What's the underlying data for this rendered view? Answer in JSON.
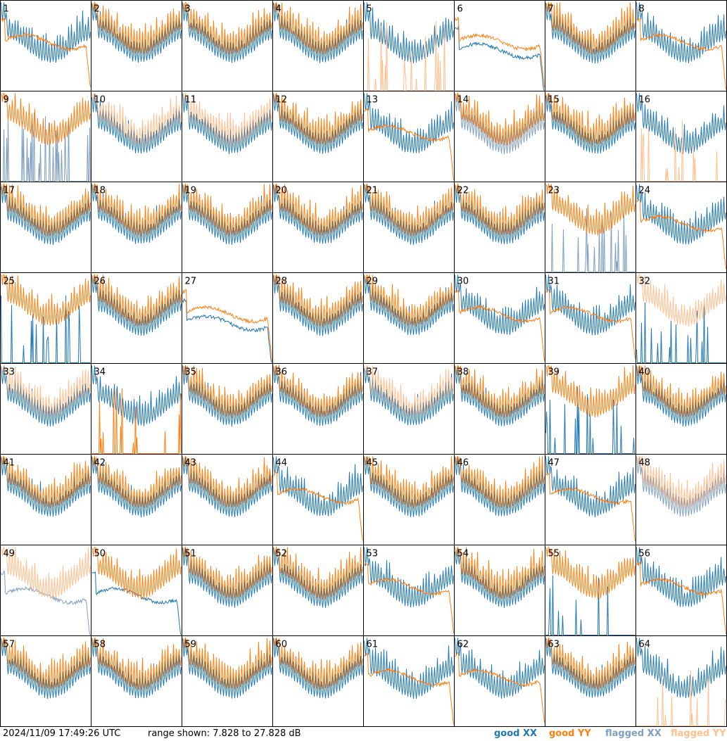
{
  "footer": {
    "timestamp": "2024/11/09 17:49:26 UTC",
    "range_text": "range shown: 7.828 to 27.828 dB"
  },
  "legend": [
    {
      "label": "good XX",
      "color": "#1f77b4"
    },
    {
      "label": "good YY",
      "color": "#ff7f0e"
    },
    {
      "label": "flagged XX",
      "color": "#7f9fbf"
    },
    {
      "label": "flagged YY",
      "color": "#ffbf8f"
    }
  ],
  "chart_data": {
    "type": "line",
    "grid_rows": 8,
    "grid_cols": 8,
    "ylim": [
      7.828,
      27.828
    ],
    "yunit": "dB",
    "colors": {
      "good_xx": "#1f77b4",
      "good_yy": "#ff7f0e",
      "flagged_xx": "#7f9fbf",
      "flagged_yy": "#ffbf8f"
    },
    "panels": [
      {
        "label": "1",
        "xx_status": "good",
        "yy_status": "good",
        "xx_shape": "ripple",
        "yy_shape": "flat"
      },
      {
        "label": "2",
        "xx_status": "good",
        "yy_status": "good",
        "xx_shape": "ripple",
        "yy_shape": "ripple"
      },
      {
        "label": "3",
        "xx_status": "good",
        "yy_status": "good",
        "xx_shape": "ripple",
        "yy_shape": "ripple"
      },
      {
        "label": "4",
        "xx_status": "good",
        "yy_status": "good",
        "xx_shape": "ripple",
        "yy_shape": "ripple"
      },
      {
        "label": "5",
        "xx_status": "good",
        "yy_status": "flagged",
        "xx_shape": "ripple",
        "yy_shape": "spikes"
      },
      {
        "label": "6",
        "xx_status": "good",
        "yy_status": "good",
        "xx_shape": "flat",
        "yy_shape": "flat"
      },
      {
        "label": "7",
        "xx_status": "good",
        "yy_status": "good",
        "xx_shape": "ripple",
        "yy_shape": "ripple"
      },
      {
        "label": "8",
        "xx_status": "good",
        "yy_status": "good",
        "xx_shape": "ripple",
        "yy_shape": "flat"
      },
      {
        "label": "9",
        "xx_status": "flagged",
        "yy_status": "good",
        "xx_shape": "spikes",
        "yy_shape": "ripple"
      },
      {
        "label": "10",
        "xx_status": "good",
        "yy_status": "flagged",
        "xx_shape": "ripple",
        "yy_shape": "ripple"
      },
      {
        "label": "11",
        "xx_status": "good",
        "yy_status": "flagged",
        "xx_shape": "ripple",
        "yy_shape": "ripple"
      },
      {
        "label": "12",
        "xx_status": "good",
        "yy_status": "good",
        "xx_shape": "ripple",
        "yy_shape": "ripple"
      },
      {
        "label": "13",
        "xx_status": "good",
        "yy_status": "good",
        "xx_shape": "ripple",
        "yy_shape": "flat"
      },
      {
        "label": "14",
        "xx_status": "flagged",
        "yy_status": "good",
        "xx_shape": "ripple",
        "yy_shape": "ripple"
      },
      {
        "label": "15",
        "xx_status": "good",
        "yy_status": "good",
        "xx_shape": "ripple",
        "yy_shape": "ripple"
      },
      {
        "label": "16",
        "xx_status": "good",
        "yy_status": "flagged",
        "xx_shape": "ripple",
        "yy_shape": "spikes"
      },
      {
        "label": "17",
        "xx_status": "good",
        "yy_status": "good",
        "xx_shape": "ripple",
        "yy_shape": "ripple"
      },
      {
        "label": "18",
        "xx_status": "good",
        "yy_status": "good",
        "xx_shape": "ripple",
        "yy_shape": "ripple"
      },
      {
        "label": "19",
        "xx_status": "good",
        "yy_status": "good",
        "xx_shape": "ripple",
        "yy_shape": "ripple"
      },
      {
        "label": "20",
        "xx_status": "good",
        "yy_status": "good",
        "xx_shape": "ripple",
        "yy_shape": "ripple"
      },
      {
        "label": "21",
        "xx_status": "good",
        "yy_status": "good",
        "xx_shape": "ripple",
        "yy_shape": "ripple"
      },
      {
        "label": "22",
        "xx_status": "good",
        "yy_status": "good",
        "xx_shape": "ripple",
        "yy_shape": "ripple"
      },
      {
        "label": "23",
        "xx_status": "flagged",
        "yy_status": "good",
        "xx_shape": "spikes",
        "yy_shape": "ripple"
      },
      {
        "label": "24",
        "xx_status": "good",
        "yy_status": "good",
        "xx_shape": "ripple",
        "yy_shape": "flat"
      },
      {
        "label": "25",
        "xx_status": "good",
        "yy_status": "good",
        "xx_shape": "spikes",
        "yy_shape": "ripple"
      },
      {
        "label": "26",
        "xx_status": "good",
        "yy_status": "good",
        "xx_shape": "ripple",
        "yy_shape": "ripple"
      },
      {
        "label": "27",
        "xx_status": "good",
        "yy_status": "good",
        "xx_shape": "flat",
        "yy_shape": "flat"
      },
      {
        "label": "28",
        "xx_status": "good",
        "yy_status": "good",
        "xx_shape": "ripple",
        "yy_shape": "ripple"
      },
      {
        "label": "29",
        "xx_status": "good",
        "yy_status": "good",
        "xx_shape": "ripple",
        "yy_shape": "ripple"
      },
      {
        "label": "30",
        "xx_status": "good",
        "yy_status": "good",
        "xx_shape": "ripple",
        "yy_shape": "flat"
      },
      {
        "label": "31",
        "xx_status": "good",
        "yy_status": "good",
        "xx_shape": "ripple",
        "yy_shape": "flat"
      },
      {
        "label": "32",
        "xx_status": "good",
        "yy_status": "flagged",
        "xx_shape": "spikes",
        "yy_shape": "ripple"
      },
      {
        "label": "33",
        "xx_status": "good",
        "yy_status": "flagged",
        "xx_shape": "ripple",
        "yy_shape": "ripple"
      },
      {
        "label": "34",
        "xx_status": "good",
        "yy_status": "good",
        "xx_shape": "ripple",
        "yy_shape": "spikes"
      },
      {
        "label": "35",
        "xx_status": "good",
        "yy_status": "good",
        "xx_shape": "ripple",
        "yy_shape": "ripple"
      },
      {
        "label": "36",
        "xx_status": "good",
        "yy_status": "good",
        "xx_shape": "ripple",
        "yy_shape": "ripple"
      },
      {
        "label": "37",
        "xx_status": "good",
        "yy_status": "flagged",
        "xx_shape": "ripple",
        "yy_shape": "ripple"
      },
      {
        "label": "38",
        "xx_status": "good",
        "yy_status": "good",
        "xx_shape": "ripple",
        "yy_shape": "ripple"
      },
      {
        "label": "39",
        "xx_status": "good",
        "yy_status": "good",
        "xx_shape": "spikes",
        "yy_shape": "ripple"
      },
      {
        "label": "40",
        "xx_status": "good",
        "yy_status": "good",
        "xx_shape": "ripple",
        "yy_shape": "ripple"
      },
      {
        "label": "41",
        "xx_status": "good",
        "yy_status": "good",
        "xx_shape": "ripple",
        "yy_shape": "ripple"
      },
      {
        "label": "42",
        "xx_status": "good",
        "yy_status": "good",
        "xx_shape": "ripple",
        "yy_shape": "ripple"
      },
      {
        "label": "43",
        "xx_status": "good",
        "yy_status": "good",
        "xx_shape": "ripple",
        "yy_shape": "ripple"
      },
      {
        "label": "44",
        "xx_status": "good",
        "yy_status": "good",
        "xx_shape": "ripple",
        "yy_shape": "flat"
      },
      {
        "label": "45",
        "xx_status": "good",
        "yy_status": "good",
        "xx_shape": "ripple",
        "yy_shape": "ripple"
      },
      {
        "label": "46",
        "xx_status": "good",
        "yy_status": "good",
        "xx_shape": "ripple",
        "yy_shape": "ripple"
      },
      {
        "label": "47",
        "xx_status": "good",
        "yy_status": "good",
        "xx_shape": "ripple",
        "yy_shape": "flat"
      },
      {
        "label": "48",
        "xx_status": "flagged",
        "yy_status": "flagged",
        "xx_shape": "ripple",
        "yy_shape": "ripple"
      },
      {
        "label": "49",
        "xx_status": "flagged",
        "yy_status": "flagged",
        "xx_shape": "flat",
        "yy_shape": "ripple"
      },
      {
        "label": "50",
        "xx_status": "good",
        "yy_status": "good",
        "xx_shape": "flat",
        "yy_shape": "ripple"
      },
      {
        "label": "51",
        "xx_status": "good",
        "yy_status": "good",
        "xx_shape": "ripple",
        "yy_shape": "ripple"
      },
      {
        "label": "52",
        "xx_status": "good",
        "yy_status": "good",
        "xx_shape": "ripple",
        "yy_shape": "ripple"
      },
      {
        "label": "53",
        "xx_status": "good",
        "yy_status": "good",
        "xx_shape": "ripple",
        "yy_shape": "flat"
      },
      {
        "label": "54",
        "xx_status": "good",
        "yy_status": "good",
        "xx_shape": "ripple",
        "yy_shape": "ripple"
      },
      {
        "label": "55",
        "xx_status": "good",
        "yy_status": "good",
        "xx_shape": "spikes",
        "yy_shape": "ripple"
      },
      {
        "label": "56",
        "xx_status": "good",
        "yy_status": "good",
        "xx_shape": "ripple",
        "yy_shape": "flat"
      },
      {
        "label": "57",
        "xx_status": "good",
        "yy_status": "good",
        "xx_shape": "ripple",
        "yy_shape": "ripple"
      },
      {
        "label": "58",
        "xx_status": "good",
        "yy_status": "good",
        "xx_shape": "ripple",
        "yy_shape": "ripple"
      },
      {
        "label": "59",
        "xx_status": "good",
        "yy_status": "good",
        "xx_shape": "ripple",
        "yy_shape": "ripple"
      },
      {
        "label": "60",
        "xx_status": "good",
        "yy_status": "good",
        "xx_shape": "ripple",
        "yy_shape": "ripple"
      },
      {
        "label": "61",
        "xx_status": "good",
        "yy_status": "good",
        "xx_shape": "ripple",
        "yy_shape": "flat"
      },
      {
        "label": "62",
        "xx_status": "good",
        "yy_status": "good",
        "xx_shape": "ripple",
        "yy_shape": "flat"
      },
      {
        "label": "63",
        "xx_status": "good",
        "yy_status": "good",
        "xx_shape": "ripple",
        "yy_shape": "ripple"
      },
      {
        "label": "64",
        "xx_status": "good",
        "yy_status": "flagged",
        "xx_shape": "ripple",
        "yy_shape": "spikes"
      }
    ]
  }
}
